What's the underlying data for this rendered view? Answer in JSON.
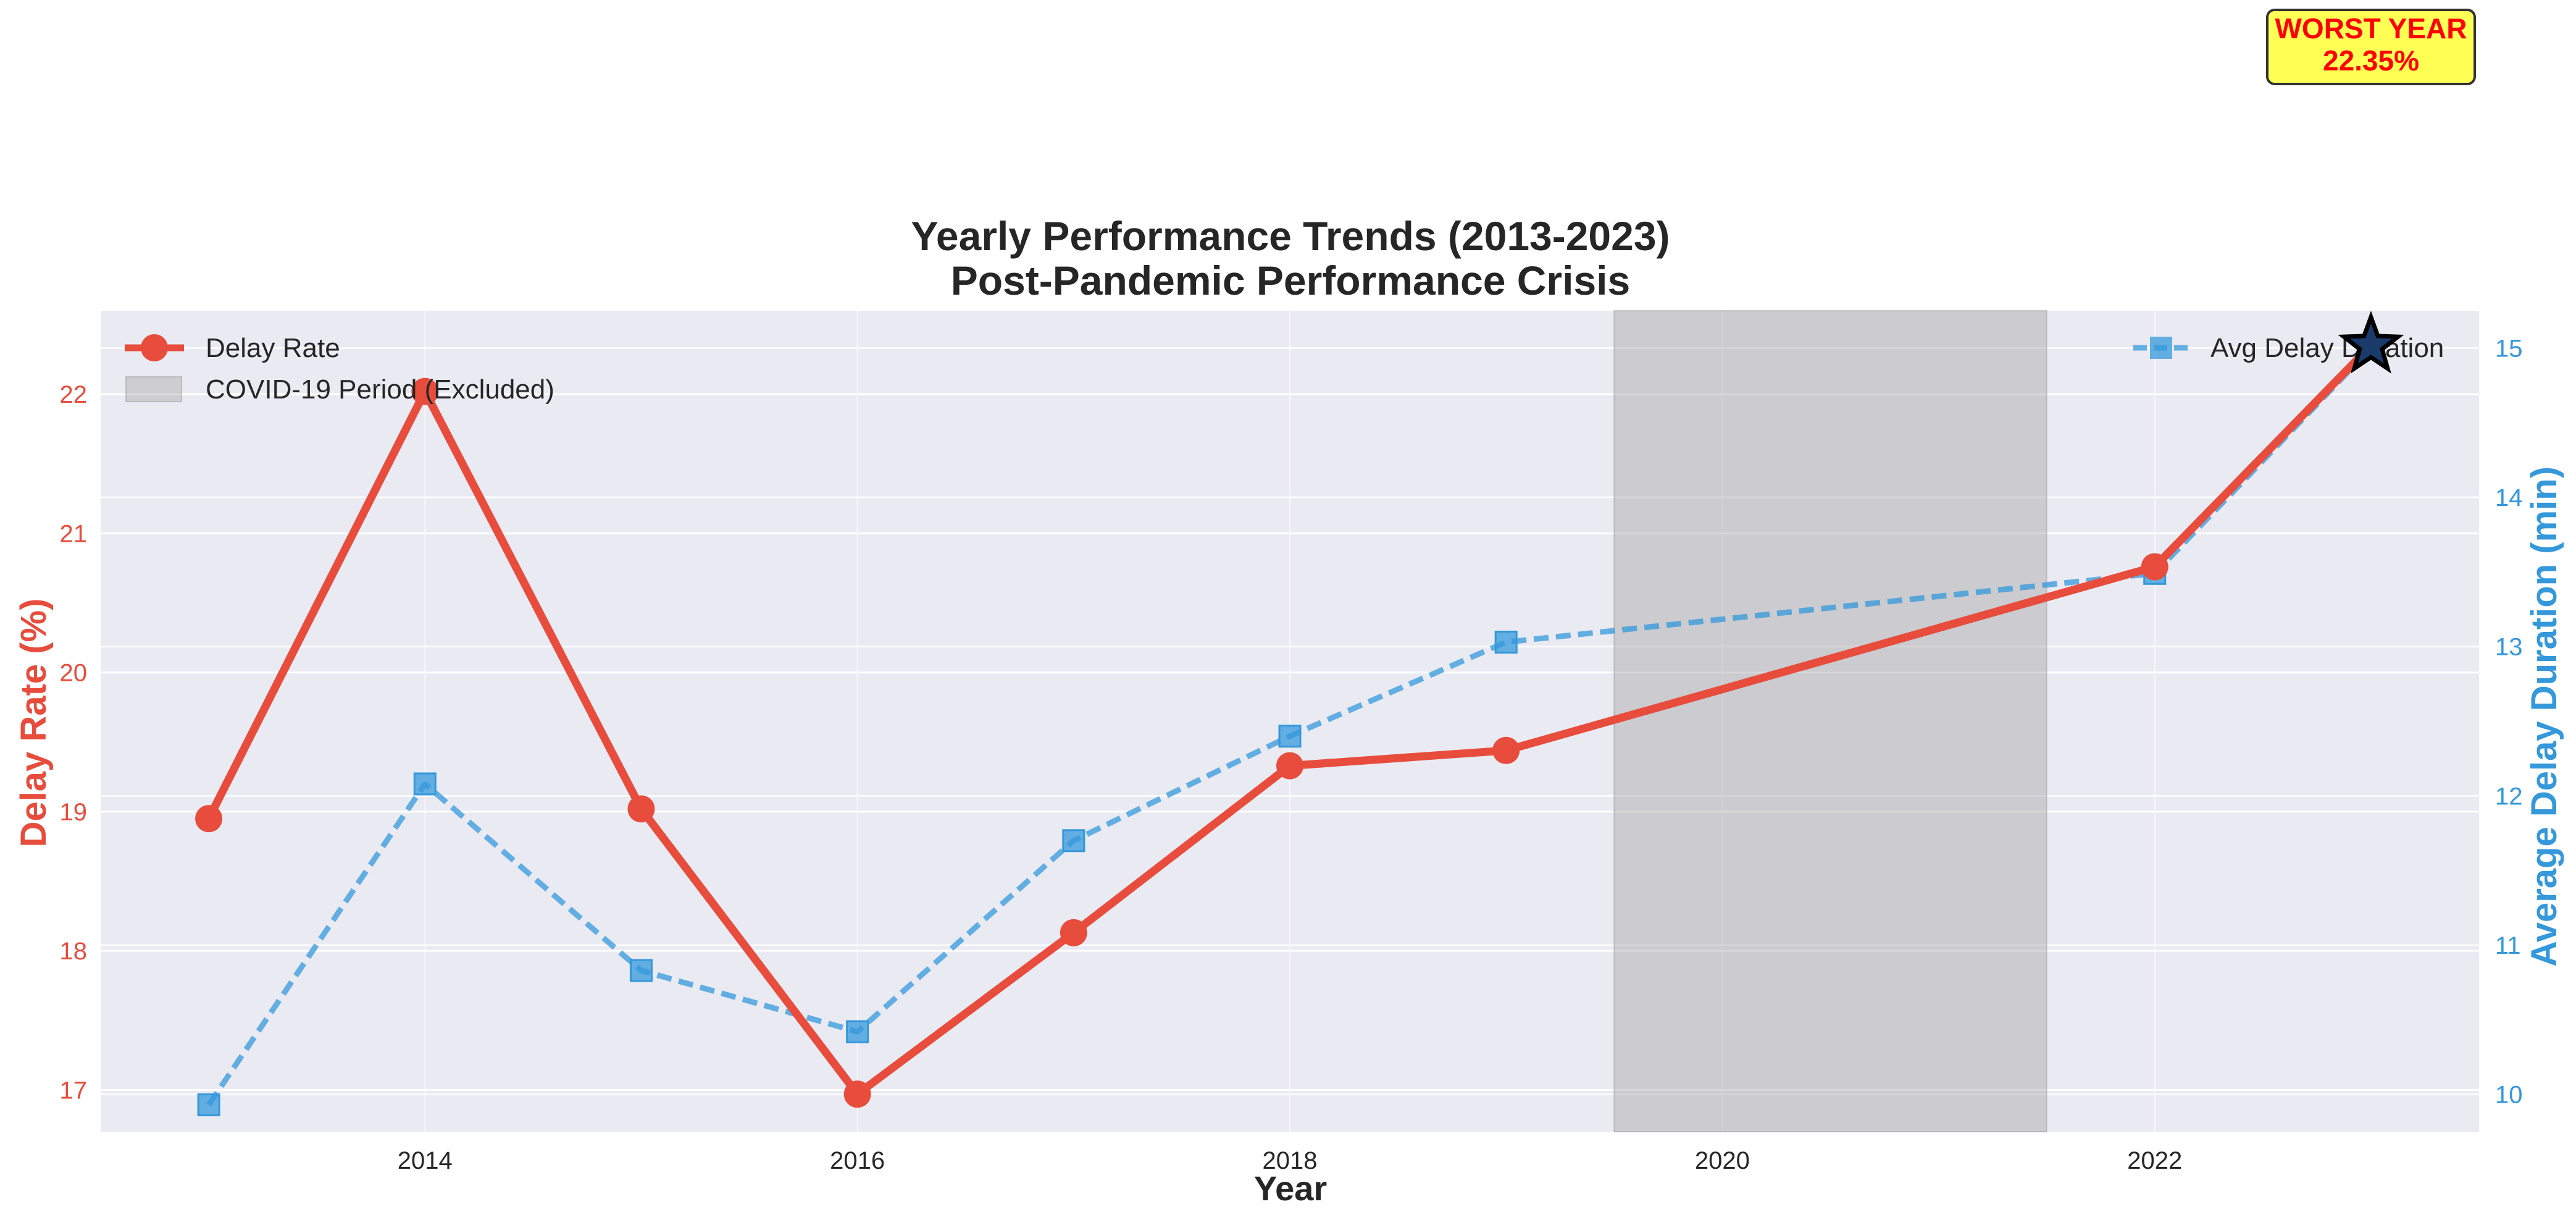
{
  "chart_data": {
    "type": "line",
    "title_line1": "Yearly Performance Trends (2013-2023)",
    "title_line2": "Post-Pandemic Performance Crisis",
    "xlabel": "Year",
    "ylabel_left": "Delay Rate (%)",
    "ylabel_right": "Average Delay Duration (min)",
    "xlim": [
      2012.5,
      2023.5
    ],
    "ylim_left": [
      16.7,
      22.6
    ],
    "ylim_right": [
      9.75,
      15.25
    ],
    "x_ticks": [
      2014,
      2016,
      2018,
      2020,
      2022
    ],
    "y_ticks_left": [
      17,
      18,
      19,
      20,
      21,
      22
    ],
    "y_ticks_right": [
      10,
      11,
      12,
      13,
      14,
      15
    ],
    "grid": true,
    "series": [
      {
        "name": "Delay Rate",
        "axis": "left",
        "color": "#e74c3c",
        "marker": "circle",
        "style": "solid",
        "x": [
          2013,
          2014,
          2015,
          2016,
          2017,
          2018,
          2019,
          2022,
          2023
        ],
        "values": [
          18.95,
          22.02,
          19.02,
          16.97,
          18.13,
          19.33,
          19.44,
          20.76,
          22.35
        ]
      },
      {
        "name": "Avg Delay Duration",
        "axis": "right",
        "color": "#3498db",
        "marker": "square",
        "style": "dashed",
        "x": [
          2013,
          2014,
          2015,
          2016,
          2017,
          2018,
          2019,
          2022,
          2023
        ],
        "values": [
          9.93,
          12.08,
          10.83,
          10.42,
          11.7,
          12.4,
          13.03,
          13.49,
          15.0
        ]
      }
    ],
    "shaded_region": {
      "label": "COVID-19 Period (Excluded)",
      "x_start": 2019.5,
      "x_end": 2021.5,
      "color": "#999999"
    },
    "annotation": {
      "line1": "WORST YEAR",
      "line2": "22.35%",
      "x": 2023,
      "y": 22.35,
      "marker": "star"
    },
    "legend_left_placement": "upper-left",
    "legend_right_placement": "upper-right"
  }
}
